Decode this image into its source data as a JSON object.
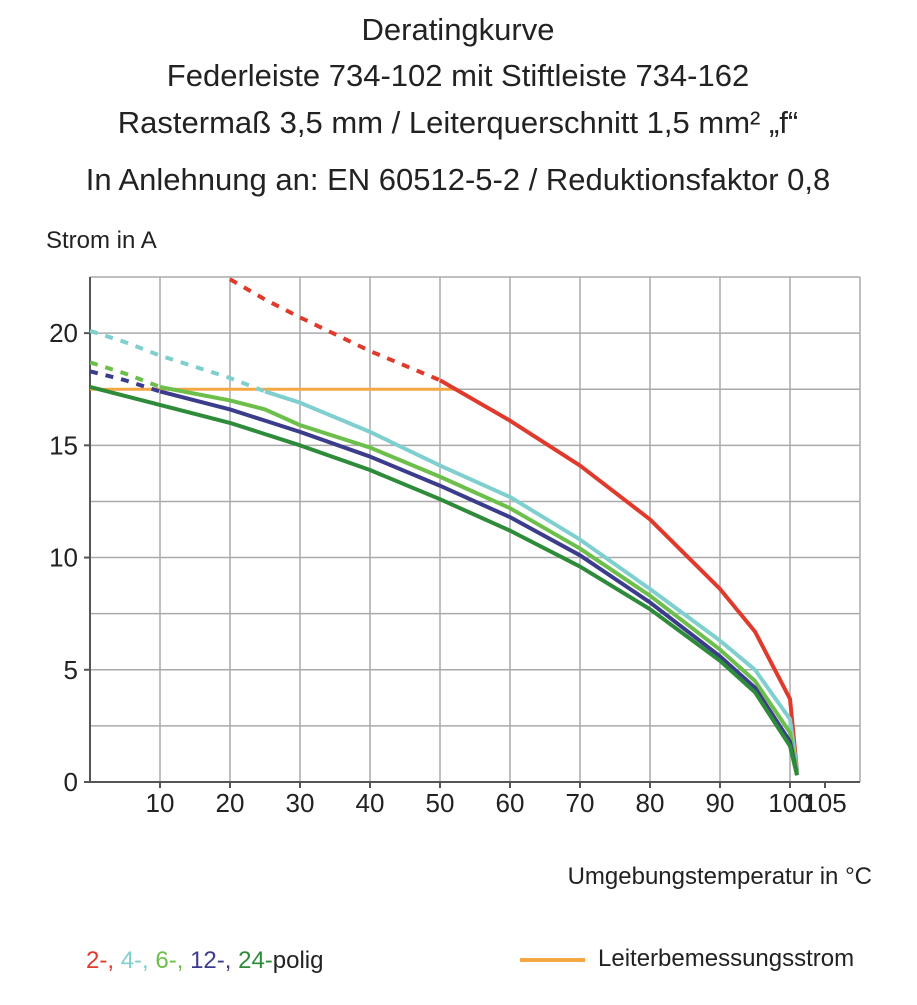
{
  "chart_data": {
    "type": "line",
    "title": [
      "Deratingkurve",
      "Federleiste 734-102 mit Stiftleiste 734-162",
      "Rastermaß 3,5 mm / Leiterquerschnitt 1,5 mm² „f“",
      "In Anlehnung an: EN 60512-5-2 / Reduktionsfaktor 0,8"
    ],
    "ylabel": "Strom in A",
    "xlabel": "Umgebungstemperatur in °C",
    "xlim": [
      0,
      110
    ],
    "ylim": [
      0,
      22.5
    ],
    "xticks": [
      10,
      20,
      30,
      40,
      50,
      60,
      70,
      80,
      90,
      100,
      105
    ],
    "yticks": [
      0,
      5,
      10,
      15,
      20
    ],
    "xgrid": [
      0,
      10,
      20,
      30,
      40,
      50,
      60,
      70,
      80,
      90,
      100,
      110
    ],
    "ygrid": [
      0,
      2.5,
      5,
      7.5,
      10,
      12.5,
      15,
      17.5,
      20,
      22.5
    ],
    "x": [
      0,
      5,
      10,
      20,
      25,
      30,
      40,
      50,
      60,
      70,
      80,
      90,
      95,
      100,
      101
    ],
    "series": [
      {
        "name": "2-,",
        "color": "#e03a2c",
        "dash_until": 50,
        "values": [
          null,
          null,
          null,
          22.4,
          21.5,
          20.7,
          19.2,
          17.9,
          16.1,
          14.1,
          11.7,
          8.6,
          6.7,
          3.7,
          0.5
        ]
      },
      {
        "name": "4-,",
        "color": "#7fcfcf",
        "dash_until": 25,
        "values": [
          20.1,
          19.6,
          19.0,
          18.0,
          17.4,
          16.9,
          15.6,
          14.1,
          12.7,
          10.8,
          8.6,
          6.3,
          5.0,
          2.8,
          0.5
        ]
      },
      {
        "name": "6-,",
        "color": "#6cbf4a",
        "dash_until": 10,
        "values": [
          18.7,
          18.2,
          17.6,
          17.0,
          16.6,
          15.9,
          14.9,
          13.6,
          12.2,
          10.4,
          8.3,
          5.9,
          4.5,
          2.2,
          0.4
        ]
      },
      {
        "name": "12-,",
        "color": "#3c3c8c",
        "dash_until": 10,
        "values": [
          18.3,
          17.9,
          17.4,
          16.6,
          16.1,
          15.6,
          14.5,
          13.2,
          11.8,
          10.1,
          8.0,
          5.6,
          4.2,
          1.8,
          0.3
        ]
      },
      {
        "name": "24-",
        "color": "#2e8b3a",
        "dash_until": 0,
        "values": [
          17.6,
          17.2,
          16.8,
          16.0,
          15.5,
          15.0,
          13.9,
          12.6,
          11.2,
          9.6,
          7.7,
          5.4,
          4.0,
          1.6,
          0.3
        ]
      }
    ],
    "legend_suffix": "polig",
    "rated": {
      "name": "Leiterbemessungsstrom",
      "color": "#f5a742",
      "x": [
        0,
        52
      ],
      "values": [
        17.5,
        17.5
      ]
    }
  }
}
